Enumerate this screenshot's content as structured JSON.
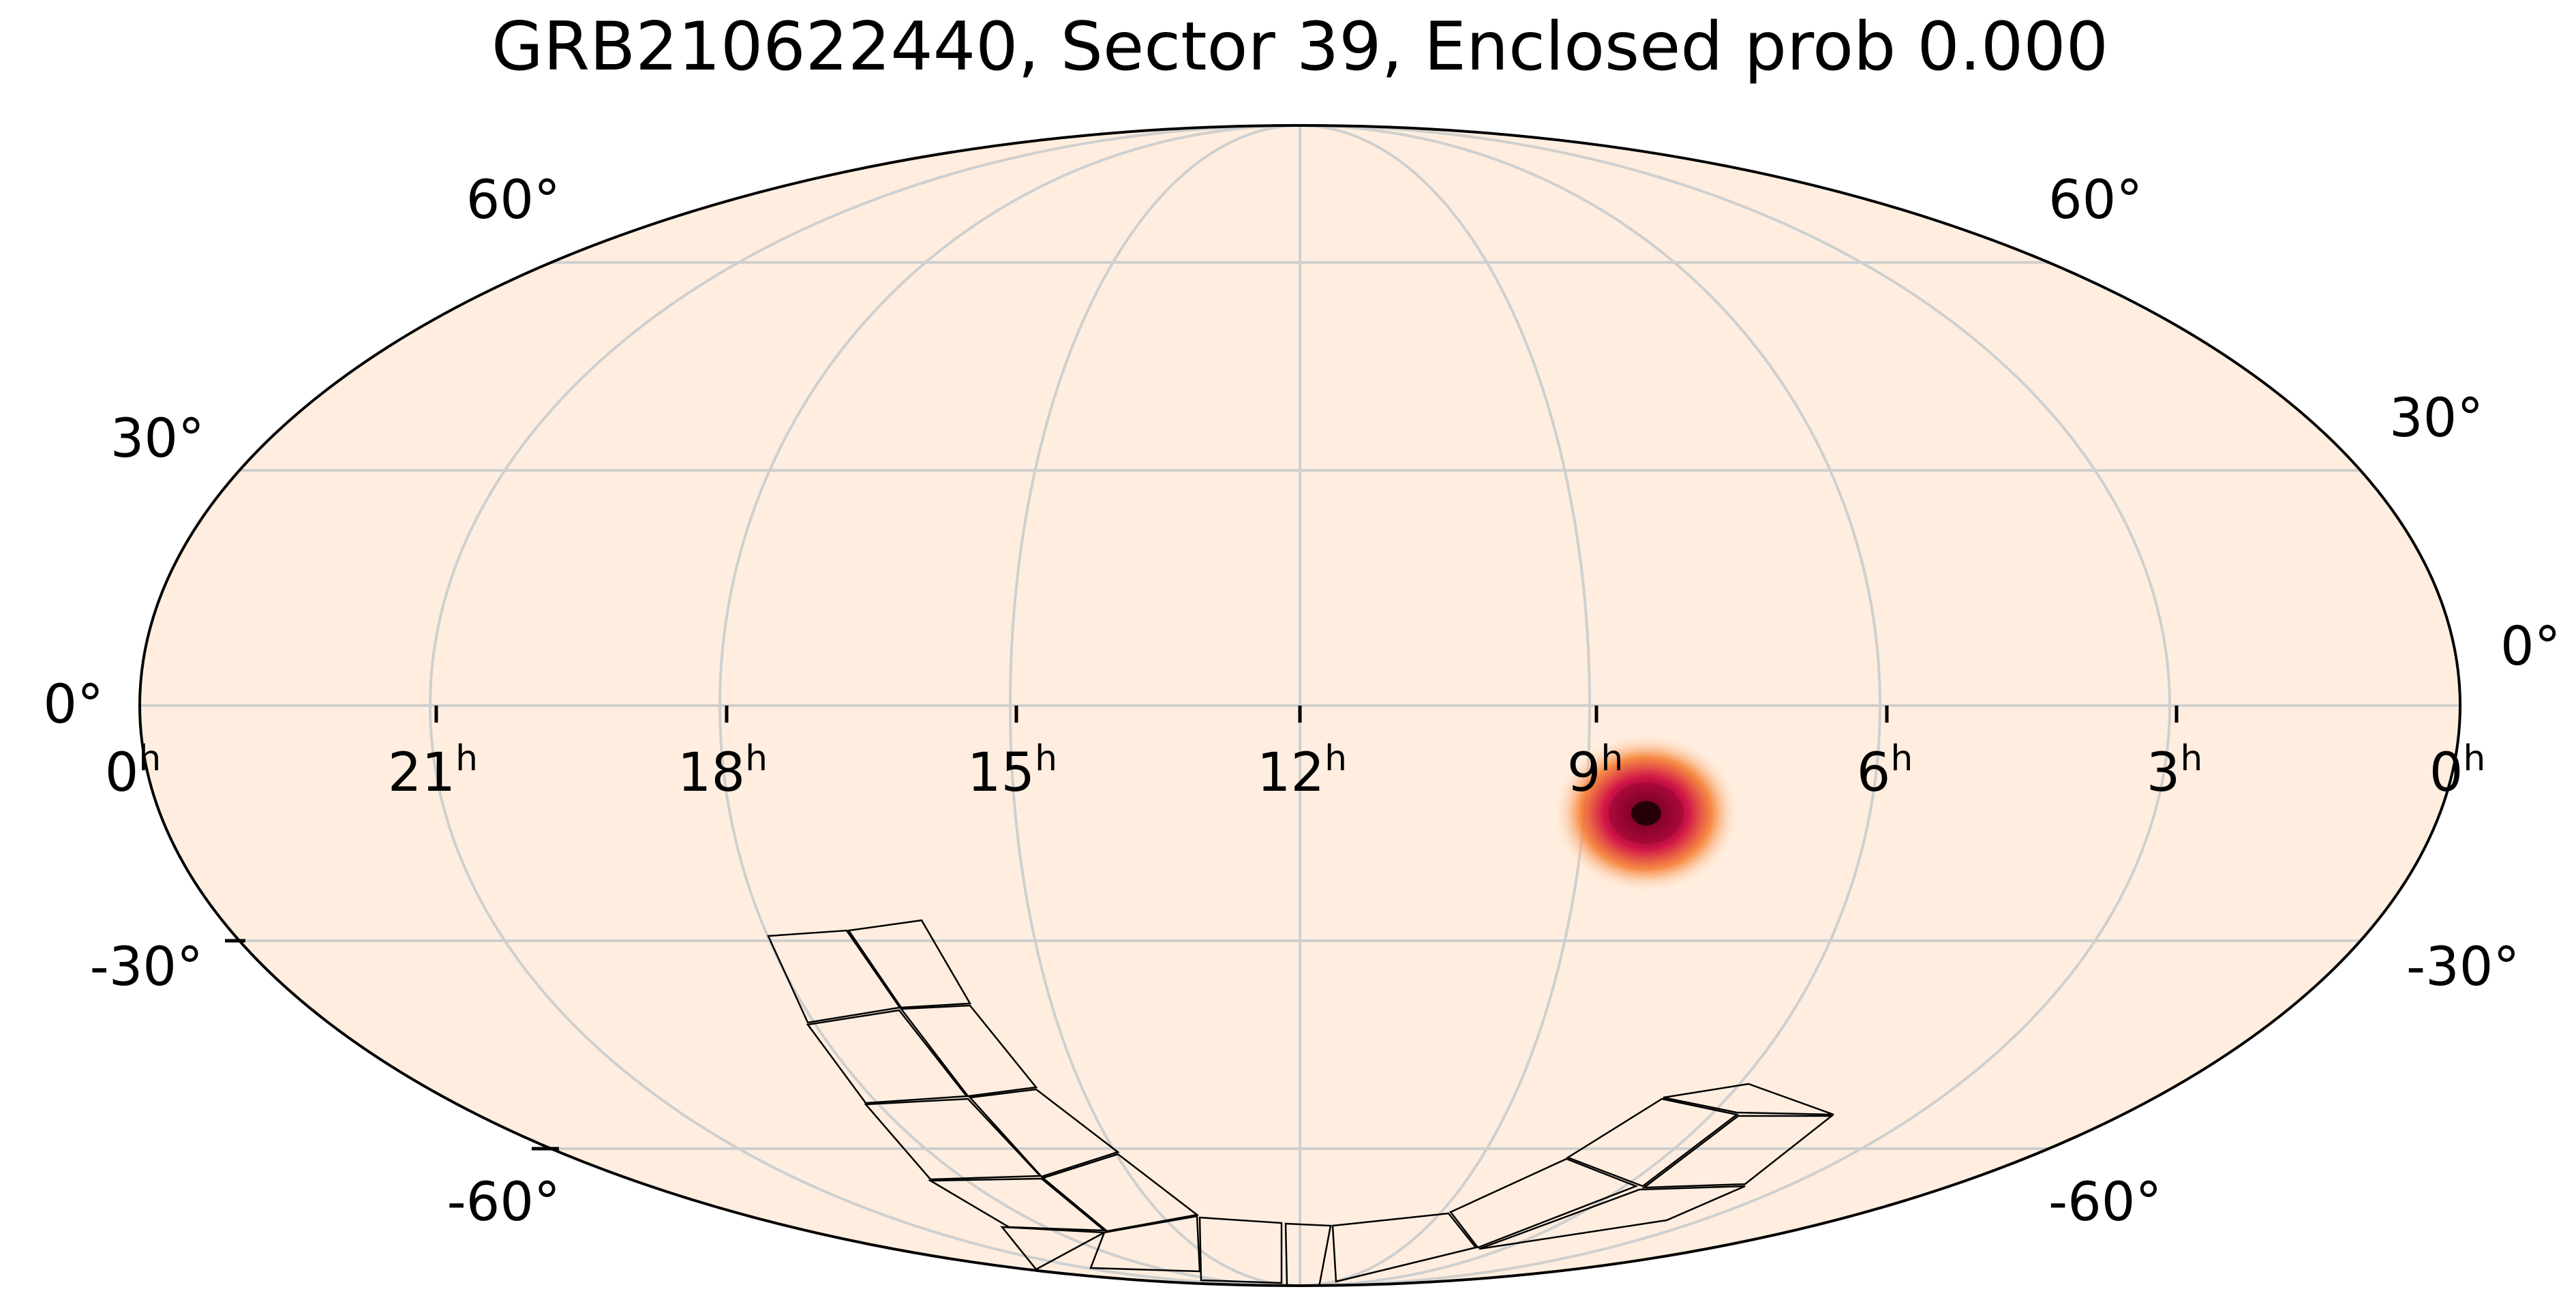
{
  "title": "GRB210622440, Sector 39, Enclosed prob 0.000",
  "colors": {
    "background_fill": "#FFEEDF",
    "graticule": "#CFCFCF",
    "outline": "#000000",
    "footprint": "#000000",
    "hotspot_core": "#3A0012",
    "hotspot_mid": "#D11548",
    "hotspot_outer": "#F57B2A"
  },
  "projection": "mollweide",
  "axes": {
    "ra_tick_labels": [
      {
        "hours": "0",
        "unit": "h"
      },
      {
        "hours": "21",
        "unit": "h"
      },
      {
        "hours": "18",
        "unit": "h"
      },
      {
        "hours": "15",
        "unit": "h"
      },
      {
        "hours": "12",
        "unit": "h"
      },
      {
        "hours": "9",
        "unit": "h"
      },
      {
        "hours": "6",
        "unit": "h"
      },
      {
        "hours": "3",
        "unit": "h"
      },
      {
        "hours": "0",
        "unit": "h"
      }
    ],
    "dec_tick_labels_left": [
      "60°",
      "30°",
      "0°",
      "-30°",
      "-60°"
    ],
    "dec_tick_labels_right": [
      "60°",
      "30°",
      "0°",
      "-30°",
      "-60°"
    ]
  },
  "probability_peak": {
    "ra_hours": 8.3,
    "dec_deg": -12
  },
  "footprint_label": "TESS Sector 39 camera footprint"
}
